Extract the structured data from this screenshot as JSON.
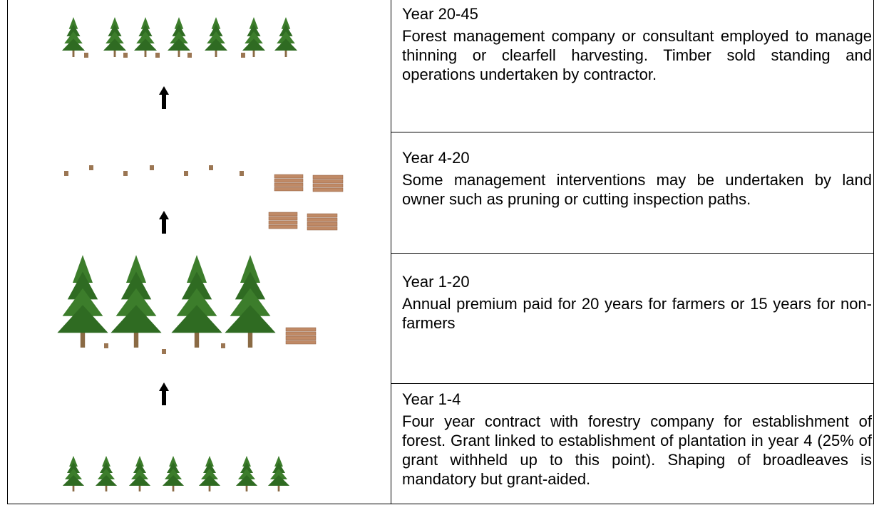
{
  "rows": [
    {
      "title": "Year 20-45",
      "text": "Forest management company or consultant employed to manage thinning or clearfell harvesting. Timber sold standing and operations undertaken by contractor."
    },
    {
      "title": "Year 4-20",
      "text": "Some management interventions may be undertaken by land owner such as pruning or cutting inspection paths."
    },
    {
      "title": "Year 1-20",
      "text": "Annual premium paid for 20 years for farmers or 15 years for non-farmers"
    },
    {
      "title": "Year 1-4",
      "text": "Four year contract with forestry company for establishment of forest. Grant linked to establishment of plantation in year 4 (25% of grant withheld up to this point). Shaping of broadleaves is mandatory but grant-aided."
    }
  ]
}
